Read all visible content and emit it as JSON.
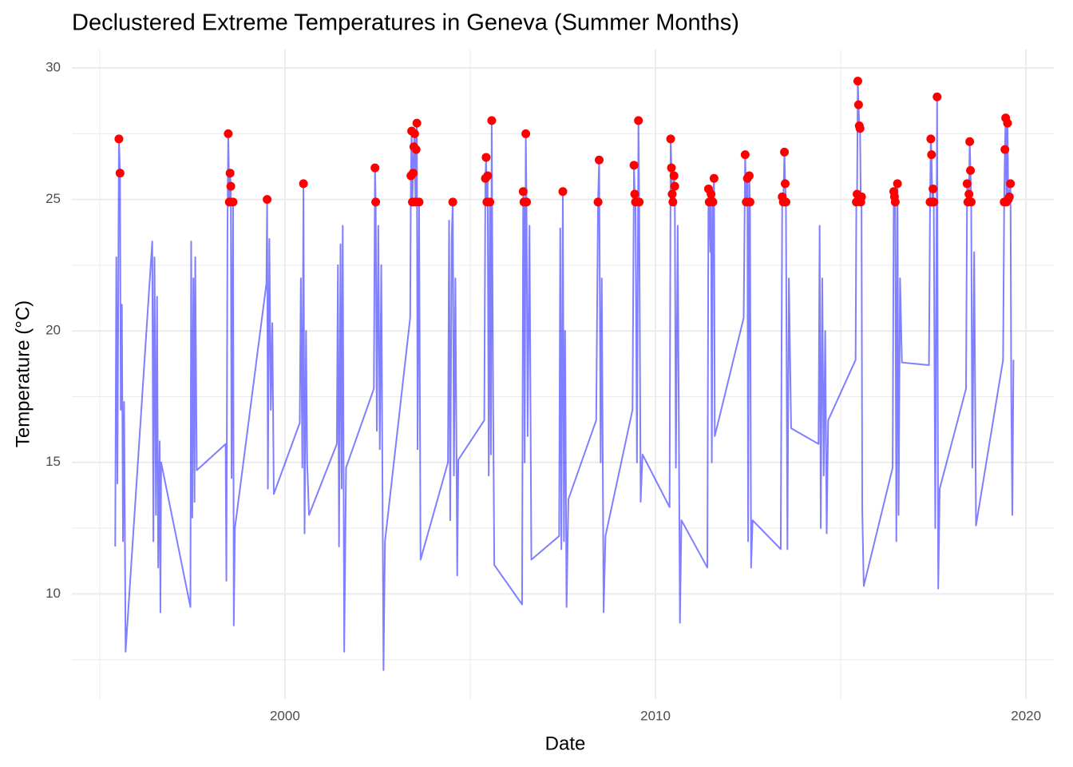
{
  "chart_data": {
    "type": "line",
    "title": "Declustered Extreme Temperatures in Geneva (Summer Months)",
    "x_label": "Date",
    "y_label": "Temperature (°C)",
    "xlim": [
      1994.25,
      2020.75
    ],
    "ylim": [
      6,
      30.7
    ],
    "xticks": [
      2000,
      2010,
      2020
    ],
    "yticks": [
      10,
      15,
      20,
      25,
      30
    ],
    "minor_xticks": [
      1995,
      2005,
      2015
    ],
    "minor_yticks": [
      7.5,
      12.5,
      17.5,
      22.5,
      27.5
    ],
    "grid": true,
    "series": [
      {
        "type": "line",
        "color": "#0000ff",
        "opacity": 0.5,
        "x": [
          1995.42,
          1995.45,
          1995.48,
          1995.52,
          1995.55,
          1995.57,
          1995.6,
          1995.63,
          1995.66,
          1995.7,
          1996.42,
          1996.45,
          1996.48,
          1996.52,
          1996.55,
          1996.58,
          1996.62,
          1996.64,
          1996.66,
          1997.45,
          1997.47,
          1997.5,
          1997.53,
          1997.56,
          1997.58,
          1997.62,
          1998.4,
          1998.42,
          1998.45,
          1998.47,
          1998.5,
          1998.52,
          1998.54,
          1998.56,
          1998.6,
          1998.62,
          1998.65,
          1999.5,
          1999.52,
          1999.54,
          1999.58,
          1999.62,
          1999.66,
          1999.7,
          2000.4,
          2000.43,
          2000.47,
          2000.5,
          2000.53,
          2000.57,
          2000.6,
          2000.65,
          2001.4,
          2001.43,
          2001.46,
          2001.5,
          2001.53,
          2001.56,
          2001.6,
          2001.65,
          2002.4,
          2002.43,
          2002.45,
          2002.48,
          2002.52,
          2002.56,
          2002.6,
          2002.66,
          2002.7,
          2003.38,
          2003.4,
          2003.42,
          2003.44,
          2003.46,
          2003.48,
          2003.5,
          2003.52,
          2003.54,
          2003.56,
          2003.58,
          2003.62,
          2003.66,
          2004.4,
          2004.43,
          2004.46,
          2004.5,
          2004.53,
          2004.56,
          2004.6,
          2004.65,
          2004.68,
          2005.38,
          2005.41,
          2005.43,
          2005.45,
          2005.47,
          2005.5,
          2005.53,
          2005.56,
          2005.58,
          2005.62,
          2005.65,
          2006.4,
          2006.43,
          2006.45,
          2006.47,
          2006.5,
          2006.52,
          2006.55,
          2006.6,
          2006.65,
          2007.4,
          2007.43,
          2007.46,
          2007.5,
          2007.53,
          2007.56,
          2007.6,
          2007.65,
          2008.4,
          2008.45,
          2008.48,
          2008.52,
          2008.55,
          2008.6,
          2008.65,
          2009.38,
          2009.42,
          2009.44,
          2009.46,
          2009.5,
          2009.54,
          2009.56,
          2009.6,
          2009.65,
          2010.38,
          2010.41,
          2010.43,
          2010.45,
          2010.47,
          2010.5,
          2010.52,
          2010.55,
          2010.6,
          2010.66,
          2010.7,
          2011.4,
          2011.43,
          2011.45,
          2011.48,
          2011.5,
          2011.52,
          2011.55,
          2011.58,
          2011.6,
          2012.38,
          2012.42,
          2012.45,
          2012.48,
          2012.5,
          2012.53,
          2012.55,
          2012.58,
          2012.62,
          2013.38,
          2013.42,
          2013.45,
          2013.48,
          2013.5,
          2013.52,
          2013.56,
          2013.6,
          2013.66,
          2014.4,
          2014.43,
          2014.46,
          2014.5,
          2014.54,
          2014.58,
          2014.62,
          2014.66,
          2015.4,
          2015.42,
          2015.44,
          2015.46,
          2015.48,
          2015.5,
          2015.52,
          2015.54,
          2015.56,
          2015.58,
          2015.62,
          2016.4,
          2016.43,
          2016.45,
          2016.47,
          2016.5,
          2016.53,
          2016.56,
          2016.6,
          2016.65,
          2017.38,
          2017.41,
          2017.43,
          2017.45,
          2017.47,
          2017.49,
          2017.51,
          2017.55,
          2017.6,
          2017.63,
          2017.67,
          2018.38,
          2018.41,
          2018.43,
          2018.46,
          2018.48,
          2018.5,
          2018.52,
          2018.55,
          2018.6,
          2018.65,
          2019.38,
          2019.41,
          2019.43,
          2019.45,
          2019.47,
          2019.5,
          2019.52,
          2019.55,
          2019.58,
          2019.6,
          2019.63,
          2019.66
        ],
        "values": [
          11.8,
          22.8,
          14.2,
          27.3,
          26.0,
          17.0,
          21.0,
          12.0,
          17.3,
          7.8,
          23.4,
          12.0,
          22.8,
          13.0,
          21.3,
          11.0,
          15.8,
          9.3,
          15.0,
          9.5,
          23.4,
          12.9,
          22.0,
          13.5,
          22.8,
          14.7,
          15.7,
          10.5,
          23.8,
          27.5,
          24.9,
          26.0,
          25.5,
          14.4,
          24.9,
          8.8,
          12.5,
          21.8,
          25.0,
          14.0,
          23.5,
          17.0,
          20.3,
          13.8,
          16.5,
          22.0,
          14.8,
          25.6,
          12.3,
          20.0,
          15.0,
          13.0,
          15.7,
          22.5,
          11.8,
          23.3,
          14.0,
          24.0,
          7.8,
          14.8,
          17.8,
          26.2,
          24.9,
          16.2,
          24.0,
          15.5,
          22.5,
          7.1,
          12.0,
          20.5,
          25.9,
          27.6,
          24.9,
          26.0,
          27.0,
          27.5,
          24.9,
          26.9,
          27.9,
          15.5,
          24.9,
          11.3,
          15.0,
          24.2,
          12.8,
          23.5,
          24.9,
          14.5,
          22.0,
          10.7,
          15.1,
          16.6,
          25.8,
          26.6,
          24.9,
          25.9,
          14.5,
          24.9,
          15.3,
          28.0,
          17.0,
          11.1,
          9.6,
          25.3,
          24.9,
          15.0,
          27.5,
          24.9,
          16.0,
          24.0,
          11.3,
          12.2,
          23.9,
          11.7,
          25.3,
          12.0,
          20.0,
          9.5,
          13.6,
          16.6,
          24.9,
          26.5,
          15.0,
          22.0,
          9.3,
          12.2,
          17.0,
          26.3,
          25.2,
          24.9,
          15.0,
          28.0,
          24.9,
          13.5,
          15.3,
          13.3,
          27.3,
          26.2,
          25.2,
          24.9,
          25.9,
          25.5,
          14.8,
          24.0,
          8.9,
          12.8,
          11.0,
          25.4,
          24.9,
          23.0,
          25.2,
          15.0,
          24.9,
          25.8,
          16.0,
          20.5,
          26.7,
          24.9,
          25.8,
          12.0,
          25.9,
          24.9,
          11.0,
          12.8,
          11.7,
          25.1,
          24.9,
          26.8,
          25.6,
          24.9,
          11.7,
          22.0,
          16.3,
          15.7,
          24.0,
          12.5,
          22.0,
          14.5,
          20.0,
          12.3,
          16.6,
          18.9,
          24.9,
          25.2,
          29.5,
          28.6,
          27.8,
          27.7,
          24.9,
          25.1,
          13.2,
          10.3,
          14.8,
          25.3,
          25.1,
          24.9,
          12.0,
          25.6,
          13.0,
          22.0,
          18.8,
          18.7,
          24.9,
          27.3,
          26.7,
          24.9,
          25.4,
          24.9,
          12.5,
          28.9,
          10.2,
          14.0,
          17.8,
          25.6,
          24.9,
          25.2,
          27.2,
          26.1,
          24.9,
          14.8,
          23.0,
          12.6,
          18.9,
          24.9,
          26.9,
          28.1,
          24.9,
          27.9,
          25.0,
          25.1,
          25.6,
          17.9,
          13.0,
          18.9
        ]
      },
      {
        "type": "scatter",
        "color": "#ff0000",
        "x": [
          1995.52,
          1995.55,
          1998.47,
          1998.5,
          1998.52,
          1998.54,
          1998.6,
          1999.52,
          2000.5,
          2002.43,
          2002.45,
          2003.4,
          2003.42,
          2003.44,
          2003.46,
          2003.48,
          2003.5,
          2003.52,
          2003.54,
          2003.56,
          2003.62,
          2004.53,
          2005.41,
          2005.43,
          2005.45,
          2005.47,
          2005.53,
          2005.58,
          2006.43,
          2006.45,
          2006.5,
          2006.52,
          2007.5,
          2008.45,
          2008.48,
          2009.42,
          2009.44,
          2009.46,
          2009.54,
          2009.56,
          2010.41,
          2010.43,
          2010.45,
          2010.47,
          2010.5,
          2010.52,
          2011.43,
          2011.45,
          2011.5,
          2011.55,
          2011.58,
          2012.42,
          2012.45,
          2012.48,
          2012.53,
          2012.55,
          2013.42,
          2013.45,
          2013.48,
          2013.5,
          2013.52,
          2015.42,
          2015.44,
          2015.46,
          2015.48,
          2015.5,
          2015.52,
          2015.54,
          2015.56,
          2016.43,
          2016.45,
          2016.47,
          2016.53,
          2017.41,
          2017.43,
          2017.45,
          2017.47,
          2017.49,
          2017.51,
          2017.6,
          2018.41,
          2018.43,
          2018.46,
          2018.48,
          2018.5,
          2018.52,
          2019.41,
          2019.43,
          2019.45,
          2019.47,
          2019.5,
          2019.52,
          2019.55,
          2019.58
        ],
        "values": [
          27.3,
          26.0,
          27.5,
          24.9,
          26.0,
          25.5,
          24.9,
          25.0,
          25.6,
          26.2,
          24.9,
          25.9,
          27.6,
          24.9,
          26.0,
          27.0,
          27.5,
          24.9,
          26.9,
          27.9,
          24.9,
          24.9,
          25.8,
          26.6,
          24.9,
          25.9,
          24.9,
          28.0,
          25.3,
          24.9,
          27.5,
          24.9,
          25.3,
          24.9,
          26.5,
          26.3,
          25.2,
          24.9,
          28.0,
          24.9,
          27.3,
          26.2,
          25.2,
          24.9,
          25.9,
          25.5,
          25.4,
          24.9,
          25.2,
          24.9,
          25.8,
          26.7,
          24.9,
          25.8,
          25.9,
          24.9,
          25.1,
          24.9,
          26.8,
          25.6,
          24.9,
          24.9,
          25.2,
          29.5,
          28.6,
          27.8,
          27.7,
          24.9,
          25.1,
          25.3,
          25.1,
          24.9,
          25.6,
          24.9,
          27.3,
          26.7,
          24.9,
          25.4,
          24.9,
          28.9,
          25.6,
          24.9,
          25.2,
          27.2,
          26.1,
          24.9,
          24.9,
          26.9,
          28.1,
          24.9,
          27.9,
          25.0,
          25.1,
          25.6
        ]
      }
    ]
  }
}
